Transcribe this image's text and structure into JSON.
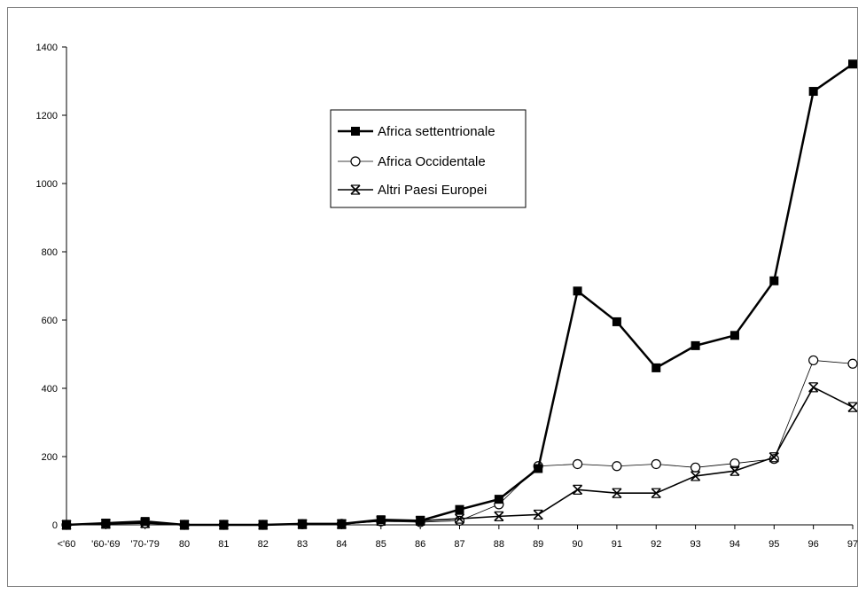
{
  "chart_data": {
    "type": "line",
    "title": "",
    "xlabel": "",
    "ylabel": "",
    "categories": [
      "<'60",
      "'60-'69",
      "'70-'79",
      "80",
      "81",
      "82",
      "83",
      "84",
      "85",
      "86",
      "87",
      "88",
      "89",
      "90",
      "91",
      "92",
      "93",
      "94",
      "95",
      "96",
      "97"
    ],
    "ylim": [
      0,
      1400
    ],
    "yticks": [
      0,
      200,
      400,
      600,
      800,
      1000,
      1200,
      1400
    ],
    "grid": false,
    "legend_position": "center",
    "series": [
      {
        "name": "Africa settentrionale",
        "marker": "filled-square",
        "color": "#000000",
        "values": [
          0,
          5,
          10,
          0,
          0,
          0,
          3,
          3,
          15,
          12,
          45,
          75,
          165,
          685,
          595,
          460,
          525,
          555,
          715,
          1270,
          1350
        ]
      },
      {
        "name": "Africa Occidentale",
        "marker": "open-circle",
        "color": "#000000",
        "values": [
          0,
          3,
          5,
          0,
          0,
          0,
          2,
          3,
          10,
          8,
          12,
          60,
          172,
          178,
          172,
          178,
          168,
          180,
          193,
          482,
          472
        ]
      },
      {
        "name": "Altri Paesi Europei",
        "marker": "asterisk",
        "color": "#000000",
        "values": [
          0,
          3,
          5,
          0,
          0,
          0,
          2,
          2,
          12,
          12,
          18,
          25,
          30,
          103,
          93,
          93,
          143,
          158,
          198,
          403,
          345
        ]
      }
    ]
  }
}
